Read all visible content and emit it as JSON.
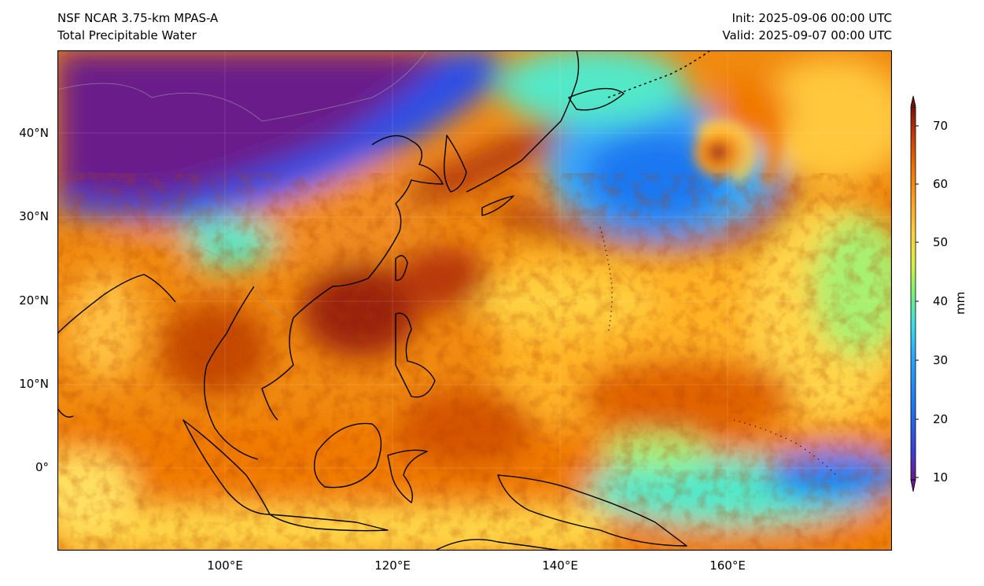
{
  "header": {
    "model": "NSF NCAR 3.75-km MPAS-A",
    "field": "Total Precipitable Water",
    "init": "Init: 2025-09-06 00:00 UTC",
    "valid": "Valid: 2025-09-07 00:00 UTC"
  },
  "axes": {
    "lat_labels": [
      "40°N",
      "30°N",
      "20°N",
      "10°N",
      "0°"
    ],
    "lon_labels": [
      "100°E",
      "120°E",
      "140°E",
      "160°E"
    ]
  },
  "colorbar": {
    "ticks": [
      "10",
      "20",
      "30",
      "40",
      "50",
      "60",
      "70"
    ],
    "unit": "mm",
    "range": [
      10,
      70
    ],
    "colormap": "turbo",
    "extend": "both"
  },
  "colors": {
    "background": "#ffffff",
    "coastline": "#000000",
    "low_pw": "#6a1b8a",
    "mid_pw": "#2ba6ff",
    "high_pw": "#f07800",
    "max_pw": "#8b1a0a"
  }
}
